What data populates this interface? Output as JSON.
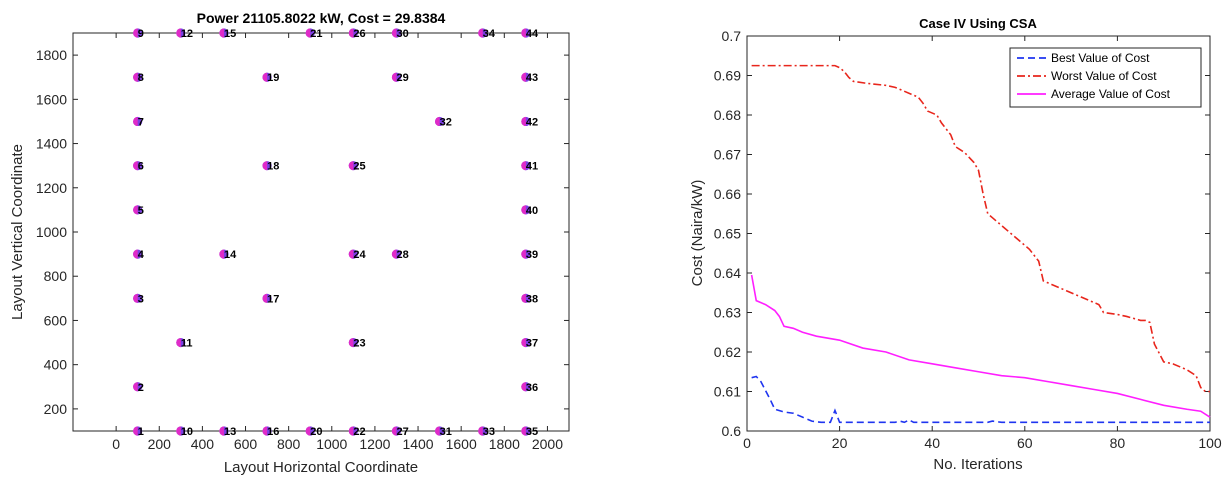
{
  "chart_data": [
    {
      "type": "scatter",
      "title": "Power 21105.8022 kW, Cost = 29.8384",
      "xlabel": "Layout Horizontal Coordinate",
      "ylabel": "Layout Vertical Coordinate",
      "xlim": [
        -200,
        2100
      ],
      "ylim": [
        100,
        1900
      ],
      "xticks": [
        0,
        200,
        400,
        600,
        800,
        1000,
        1200,
        1400,
        1600,
        1800,
        2000
      ],
      "yticks": [
        200,
        400,
        600,
        800,
        1000,
        1200,
        1400,
        1600,
        1800
      ],
      "grid": false,
      "marker_colors": [
        "#7b3fe4",
        "#e02bc8"
      ],
      "points": [
        {
          "label": "1",
          "x": 100,
          "y": 100
        },
        {
          "label": "2",
          "x": 100,
          "y": 300
        },
        {
          "label": "3",
          "x": 100,
          "y": 700
        },
        {
          "label": "4",
          "x": 100,
          "y": 900
        },
        {
          "label": "5",
          "x": 100,
          "y": 1100
        },
        {
          "label": "6",
          "x": 100,
          "y": 1300
        },
        {
          "label": "7",
          "x": 100,
          "y": 1500
        },
        {
          "label": "8",
          "x": 100,
          "y": 1700
        },
        {
          "label": "9",
          "x": 100,
          "y": 1900
        },
        {
          "label": "10",
          "x": 300,
          "y": 100
        },
        {
          "label": "11",
          "x": 300,
          "y": 500
        },
        {
          "label": "12",
          "x": 300,
          "y": 1900
        },
        {
          "label": "13",
          "x": 500,
          "y": 100
        },
        {
          "label": "14",
          "x": 500,
          "y": 900
        },
        {
          "label": "15",
          "x": 500,
          "y": 1900
        },
        {
          "label": "16",
          "x": 700,
          "y": 100
        },
        {
          "label": "17",
          "x": 700,
          "y": 700
        },
        {
          "label": "18",
          "x": 700,
          "y": 1300
        },
        {
          "label": "19",
          "x": 700,
          "y": 1700
        },
        {
          "label": "20",
          "x": 900,
          "y": 100
        },
        {
          "label": "21",
          "x": 900,
          "y": 1900
        },
        {
          "label": "22",
          "x": 1100,
          "y": 100
        },
        {
          "label": "23",
          "x": 1100,
          "y": 500
        },
        {
          "label": "24",
          "x": 1100,
          "y": 900
        },
        {
          "label": "25",
          "x": 1100,
          "y": 1300
        },
        {
          "label": "26",
          "x": 1100,
          "y": 1900
        },
        {
          "label": "27",
          "x": 1300,
          "y": 100
        },
        {
          "label": "28",
          "x": 1300,
          "y": 900
        },
        {
          "label": "29",
          "x": 1300,
          "y": 1700
        },
        {
          "label": "30",
          "x": 1300,
          "y": 1900
        },
        {
          "label": "31",
          "x": 1500,
          "y": 100
        },
        {
          "label": "32",
          "x": 1500,
          "y": 1500
        },
        {
          "label": "33",
          "x": 1700,
          "y": 100
        },
        {
          "label": "34",
          "x": 1700,
          "y": 1900
        },
        {
          "label": "35",
          "x": 1900,
          "y": 100
        },
        {
          "label": "36",
          "x": 1900,
          "y": 300
        },
        {
          "label": "37",
          "x": 1900,
          "y": 500
        },
        {
          "label": "38",
          "x": 1900,
          "y": 700
        },
        {
          "label": "39",
          "x": 1900,
          "y": 900
        },
        {
          "label": "40",
          "x": 1900,
          "y": 1100
        },
        {
          "label": "41",
          "x": 1900,
          "y": 1300
        },
        {
          "label": "42",
          "x": 1900,
          "y": 1500
        },
        {
          "label": "43",
          "x": 1900,
          "y": 1700
        },
        {
          "label": "44",
          "x": 1900,
          "y": 1900
        }
      ]
    },
    {
      "type": "line",
      "title": "Case IV Using CSA",
      "xlabel": "No. Iterations",
      "ylabel": "Cost (Naira/kW)",
      "xlim": [
        0,
        100
      ],
      "ylim": [
        0.6,
        0.7
      ],
      "xticks": [
        0,
        20,
        40,
        60,
        80,
        100
      ],
      "yticks": [
        0.6,
        0.61,
        0.62,
        0.63,
        0.64,
        0.65,
        0.66,
        0.67,
        0.68,
        0.69,
        0.7
      ],
      "grid": false,
      "legend_position": "top-right",
      "series": [
        {
          "name": "Best Value of Cost",
          "color": "#1f35f0",
          "dash": "dashed",
          "x": [
            1,
            2,
            3,
            5,
            6,
            8,
            10,
            12,
            14,
            16,
            18,
            19,
            20,
            21,
            25,
            30,
            32,
            33,
            34,
            35,
            36,
            40,
            45,
            50,
            52,
            53,
            55,
            60,
            70,
            80,
            90,
            100
          ],
          "y": [
            0.6135,
            0.6138,
            0.6125,
            0.608,
            0.6055,
            0.6048,
            0.6045,
            0.6035,
            0.6025,
            0.6022,
            0.6022,
            0.6052,
            0.6022,
            0.6022,
            0.6022,
            0.6022,
            0.6022,
            0.6025,
            0.6022,
            0.6028,
            0.6022,
            0.6022,
            0.6022,
            0.6022,
            0.6022,
            0.6025,
            0.6022,
            0.6022,
            0.6022,
            0.6022,
            0.6022,
            0.6022
          ]
        },
        {
          "name": "Worst Value of Cost",
          "color": "#e8261c",
          "dash": "dashdot",
          "x": [
            1,
            5,
            10,
            15,
            18,
            19,
            20,
            21,
            22,
            23,
            26,
            30,
            32,
            34,
            36,
            37,
            38,
            39,
            41,
            42,
            44,
            45,
            47,
            49,
            50,
            51,
            52,
            53,
            55,
            57,
            59,
            61,
            63,
            64,
            66,
            68,
            70,
            72,
            74,
            76,
            77,
            80,
            82,
            85,
            86,
            87,
            88,
            90,
            92,
            95,
            97,
            98,
            99,
            100
          ],
          "y": [
            0.6925,
            0.6925,
            0.6925,
            0.6925,
            0.6925,
            0.6925,
            0.692,
            0.691,
            0.6895,
            0.6885,
            0.688,
            0.6875,
            0.687,
            0.686,
            0.685,
            0.6845,
            0.683,
            0.681,
            0.68,
            0.678,
            0.675,
            0.672,
            0.6705,
            0.668,
            0.666,
            0.66,
            0.655,
            0.654,
            0.652,
            0.65,
            0.648,
            0.646,
            0.643,
            0.638,
            0.637,
            0.636,
            0.635,
            0.634,
            0.633,
            0.632,
            0.63,
            0.6295,
            0.629,
            0.628,
            0.628,
            0.6275,
            0.622,
            0.6175,
            0.617,
            0.6155,
            0.614,
            0.611,
            0.61,
            0.61
          ]
        },
        {
          "name": "Average Value of Cost",
          "color": "#ff1fff",
          "dash": "solid",
          "x": [
            1,
            2,
            3,
            4,
            6,
            7,
            8,
            10,
            12,
            15,
            20,
            25,
            30,
            35,
            40,
            45,
            50,
            55,
            60,
            65,
            70,
            75,
            80,
            85,
            90,
            95,
            98,
            100
          ],
          "y": [
            0.6395,
            0.633,
            0.6325,
            0.632,
            0.6305,
            0.629,
            0.6265,
            0.626,
            0.625,
            0.624,
            0.623,
            0.621,
            0.62,
            0.618,
            0.617,
            0.616,
            0.615,
            0.614,
            0.6135,
            0.6125,
            0.6115,
            0.6105,
            0.6095,
            0.608,
            0.6065,
            0.6055,
            0.605,
            0.6035
          ]
        }
      ]
    }
  ]
}
